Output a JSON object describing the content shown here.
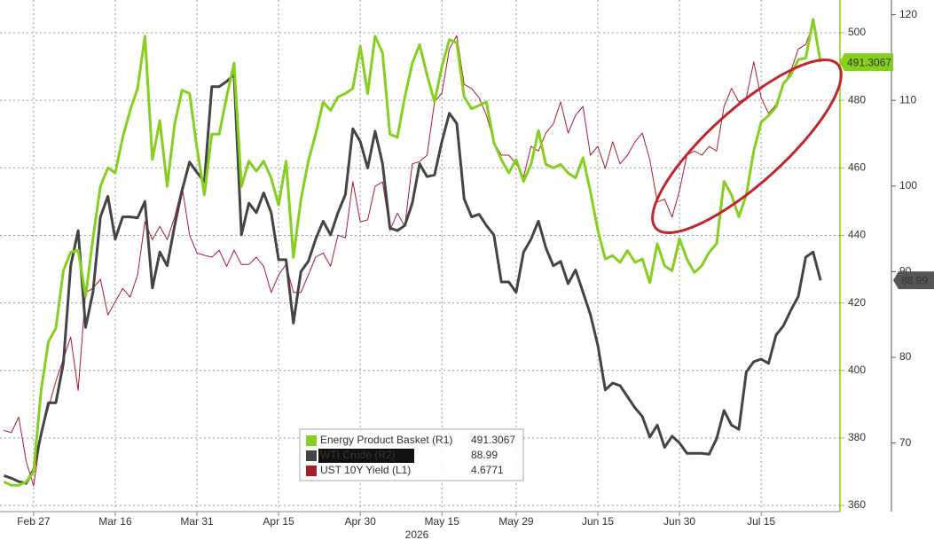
{
  "chart_data": {
    "type": "line",
    "xlabel": "2026",
    "categories": [
      null,
      null,
      null,
      null,
      "Feb 27",
      null,
      null,
      null,
      null,
      null,
      null,
      null,
      null,
      null,
      null,
      "Mar 16",
      null,
      null,
      null,
      null,
      null,
      null,
      null,
      null,
      null,
      null,
      "Mar 31",
      null,
      null,
      null,
      null,
      null,
      null,
      null,
      null,
      null,
      null,
      "Apr 15",
      null,
      null,
      null,
      null,
      null,
      null,
      null,
      null,
      null,
      null,
      "Apr 30",
      null,
      null,
      null,
      null,
      null,
      null,
      null,
      null,
      null,
      null,
      "May 15",
      null,
      null,
      null,
      null,
      null,
      null,
      null,
      null,
      null,
      "May 29",
      null,
      null,
      null,
      null,
      null,
      null,
      null,
      null,
      null,
      null,
      "Jun 15",
      null,
      null,
      null,
      null,
      null,
      null,
      null,
      null,
      null,
      null,
      "Jun 30",
      null,
      null,
      null,
      null,
      null,
      null,
      null,
      null,
      null,
      null,
      "Jul 15",
      null,
      null,
      null,
      null,
      null,
      null,
      null,
      null
    ],
    "series": [
      {
        "name": "Energy Product Basket (R1)",
        "color": "#86cf1f",
        "axis": "y",
        "values": [
          367,
          366,
          366,
          367,
          370,
          394,
          408.5,
          412.5,
          429.5,
          435,
          435.6,
          422,
          439,
          454.5,
          460,
          458.5,
          469,
          477,
          483.5,
          499,
          462.5,
          474,
          454.5,
          473,
          483,
          482,
          466,
          452,
          470,
          470,
          481,
          491,
          454.5,
          462,
          459,
          462,
          457,
          449,
          462,
          433.5,
          450.5,
          462,
          470,
          479.5,
          477,
          481,
          482,
          483.5,
          496,
          482,
          499,
          494,
          470,
          469,
          481,
          491,
          496.5,
          487.5,
          479.5,
          490,
          498,
          497,
          481,
          477.5,
          478.5,
          479.5,
          467.5,
          462.5,
          458.5,
          462.5,
          456,
          461,
          471,
          461,
          460,
          461,
          458.5,
          457,
          463,
          453,
          441.5,
          433,
          434,
          432,
          435.5,
          432,
          433,
          426,
          437.5,
          431,
          429.5,
          439,
          433,
          429,
          431,
          435,
          437.5,
          456,
          452,
          445.5,
          452,
          465,
          473.5,
          475.5,
          478,
          485,
          487.5,
          492,
          492.5,
          504,
          491.3067
        ]
      },
      {
        "name": "WTI Crude (R2)",
        "color": "#444444",
        "axis": "y2",
        "values": [
          66.2,
          65.9,
          65.5,
          65.3,
          66.9,
          71,
          74.7,
          74.7,
          79.3,
          90.7,
          94.8,
          83.5,
          87.6,
          96.4,
          98.8,
          93.8,
          96.4,
          96.4,
          96.3,
          98.2,
          88.1,
          92.3,
          90.7,
          95.4,
          99.5,
          102.8,
          101.6,
          100.5,
          111.6,
          111.6,
          112.2,
          113,
          94.3,
          98,
          96.9,
          99.2,
          96.9,
          91.4,
          91.4,
          84.0,
          90,
          91.2,
          93.8,
          95.9,
          94.3,
          96.9,
          99,
          106.7,
          105.2,
          102.1,
          106.4,
          102.6,
          95.1,
          94.8,
          95.4,
          98,
          102.6,
          101.1,
          101.3,
          105.2,
          108.5,
          107.3,
          98.5,
          96.4,
          96.7,
          95.4,
          94.3,
          88.8,
          88.8,
          87.6,
          92.3,
          93.8,
          95.9,
          92.8,
          90.7,
          91.2,
          88.6,
          90.2,
          87.6,
          85,
          81.4,
          76.2,
          77,
          76.7,
          75.4,
          74.1,
          73.1,
          70.7,
          72.1,
          69.5,
          70.8,
          70,
          68.8,
          68.8,
          68.8,
          68.7,
          70.5,
          73.8,
          72.1,
          71.6,
          78.3,
          79.5,
          79.8,
          79.3,
          82.6,
          83.7,
          85.5,
          87.1,
          91.7,
          92.3,
          88.99
        ]
      },
      {
        "name": "UST 10Y Yield (L1)",
        "color": "#a51d2d",
        "axis": "y3",
        "values": [
          3.873,
          3.868,
          3.902,
          3.806,
          3.752,
          3.864,
          3.922,
          3.98,
          4.028,
          4.076,
          3.96,
          4.173,
          4.182,
          4.202,
          4.124,
          4.153,
          4.182,
          4.163,
          4.211,
          4.327,
          4.288,
          4.317,
          4.288,
          4.337,
          4.404,
          4.298,
          4.259,
          4.254,
          4.25,
          4.265,
          4.23,
          4.265,
          4.234,
          4.234,
          4.25,
          4.23,
          4.173,
          4.211,
          4.234,
          4.173,
          4.173,
          4.211,
          4.25,
          4.259,
          4.23,
          4.298,
          4.292,
          4.414,
          4.327,
          4.331,
          4.404,
          4.414,
          4.308,
          4.346,
          4.317,
          4.453,
          4.458,
          4.472,
          4.588,
          4.607,
          4.703,
          4.732,
          4.626,
          4.617,
          4.597,
          4.559,
          4.501,
          4.472,
          4.472,
          4.453,
          4.424,
          4.491,
          4.481,
          4.52,
          4.54,
          4.588,
          4.52,
          4.559,
          4.578,
          4.472,
          4.491,
          4.443,
          4.501,
          4.453,
          4.472,
          4.501,
          4.52,
          4.462,
          4.37,
          4.376,
          4.337,
          4.395,
          4.472,
          4.481,
          4.472,
          4.491,
          4.481,
          4.578,
          4.617,
          4.588,
          4.597,
          4.675,
          4.597,
          4.563,
          4.582,
          4.626,
          4.655,
          4.703,
          4.713,
          4.756,
          4.6771
        ]
      }
    ],
    "ylim": [
      358.7,
      508.4
    ],
    "yticks": [
      360,
      380,
      400,
      420,
      440,
      460,
      480,
      500
    ],
    "y2lim": [
      62.2,
      121.2
    ],
    "y2ticks": [
      70,
      80,
      90,
      100,
      110,
      120
    ],
    "y3lim": [
      3.7,
      4.8
    ],
    "grid": true,
    "legend": "lower center"
  }
}
